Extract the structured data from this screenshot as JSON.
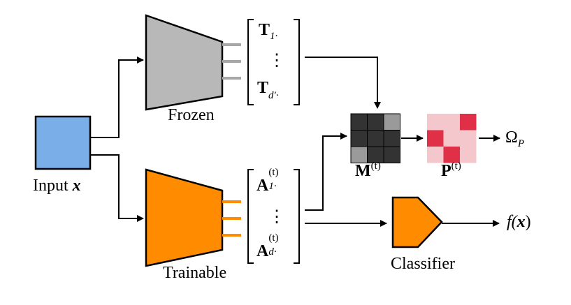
{
  "colors": {
    "input_box": "#7aaee8",
    "frozen": "#b8b8b8",
    "trainable": "#ff8c00",
    "frozen_lines": "#a8a8a8",
    "trainable_lines": "#ff8c00",
    "matrix_dark": "#333333",
    "matrix_light": "#9a9a9a",
    "p_light": "#f4c7cd",
    "p_dark": "#e03047"
  },
  "labels": {
    "input": "Input",
    "input_var": "x",
    "frozen": "Frozen",
    "trainable": "Trainable",
    "classifier": "Classifier",
    "omega": "Ω",
    "omega_sub": "P",
    "f_text": "f(",
    "f_var": "x",
    "f_close": ")"
  },
  "t_vector": {
    "top_main": "T",
    "top_sub": "1·",
    "dots": "⋮",
    "bottom_main": "T",
    "bottom_sub": "d′·"
  },
  "a_vector": {
    "top_main": "A",
    "top_sub": "1·",
    "top_sup": "(t)",
    "dots": "⋮",
    "bottom_main": "A",
    "bottom_sub": "d·",
    "bottom_sup": "(t)"
  },
  "m_label": {
    "main": "M",
    "sup": "(t)"
  },
  "p_label": {
    "main": "P",
    "sup": "(t)"
  }
}
